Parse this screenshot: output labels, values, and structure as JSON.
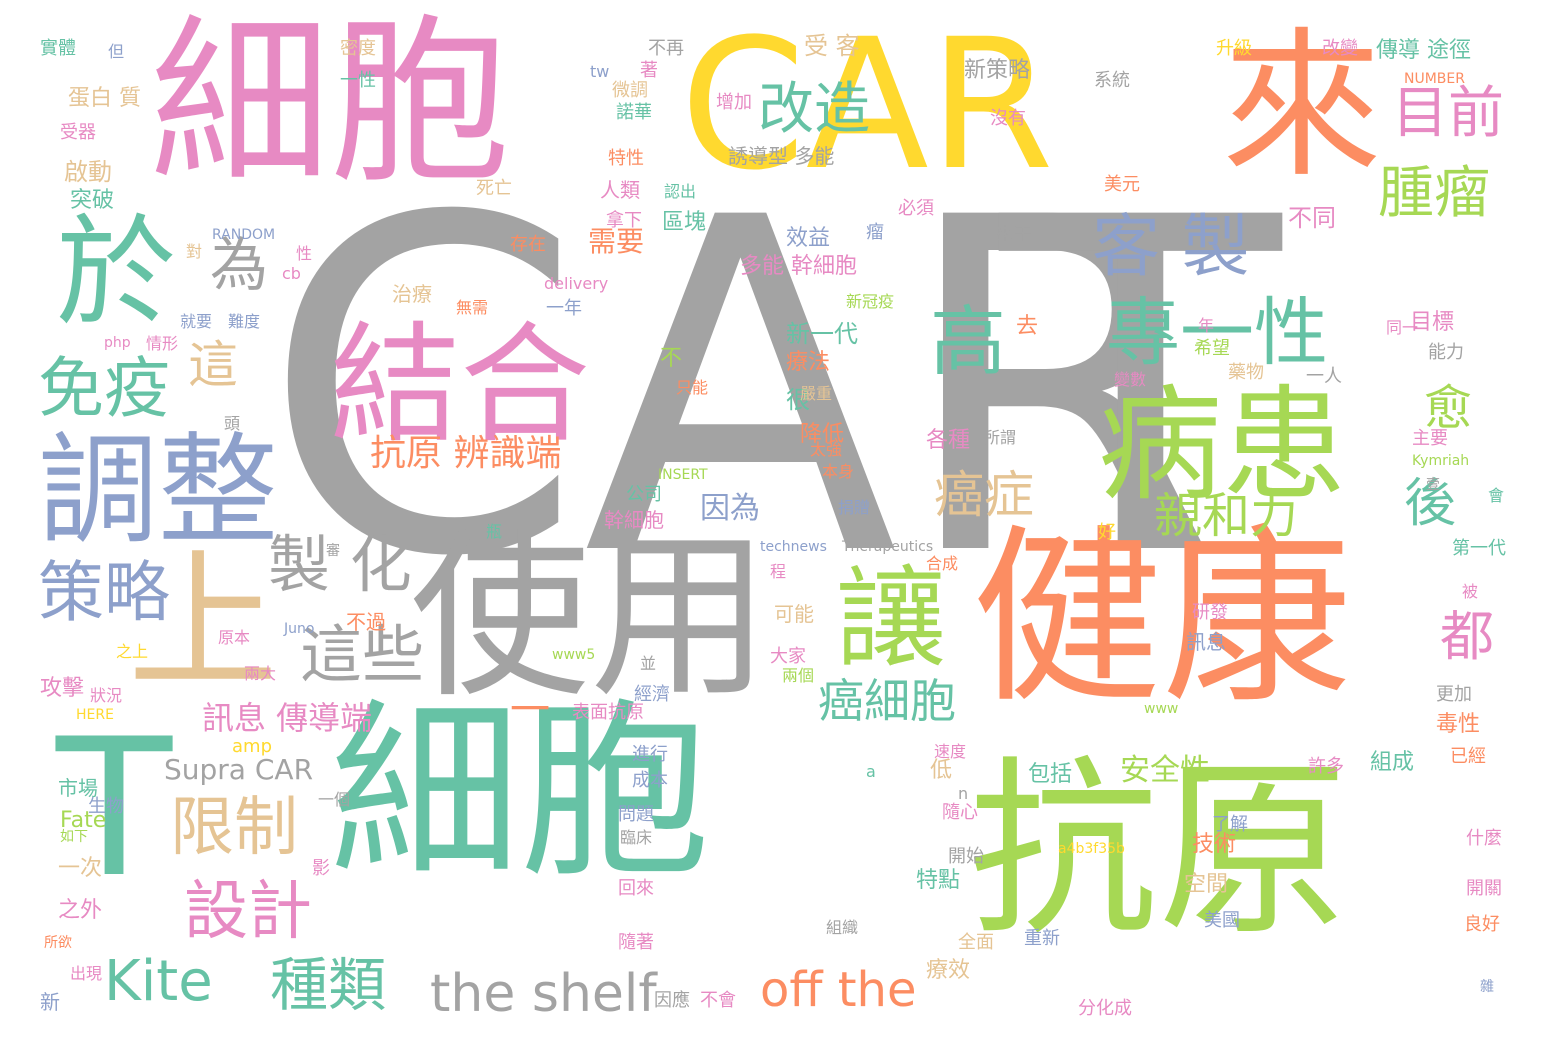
{
  "words": [
    {
      "text": "CAR",
      "color": "#a3a3a3"
    },
    {
      "text": "T",
      "color": "#a3a3a3"
    },
    {
      "text": "細胞",
      "color": "#e78ac3"
    },
    {
      "text": "CAR",
      "color": "#ffd92f"
    },
    {
      "text": "來",
      "color": "#fc8d62"
    },
    {
      "text": "於",
      "color": "#66c2a5"
    },
    {
      "text": "調整",
      "color": "#8da0cb"
    },
    {
      "text": "結合",
      "color": "#e78ac3"
    },
    {
      "text": "病患",
      "color": "#a6d854"
    },
    {
      "text": "健康",
      "color": "#fc8d62"
    },
    {
      "text": "使用",
      "color": "#a3a3a3"
    },
    {
      "text": "上",
      "color": "#e5c494"
    },
    {
      "text": "T",
      "color": "#66c2a5"
    },
    {
      "text": "細胞",
      "color": "#66c2a5"
    },
    {
      "text": "抗原",
      "color": "#a6d854"
    },
    {
      "text": "讓",
      "color": "#a6d854"
    },
    {
      "text": "改造",
      "color": "#66c2a5"
    },
    {
      "text": "目前",
      "color": "#e78ac3"
    },
    {
      "text": "腫瘤",
      "color": "#a6d854"
    },
    {
      "text": "客 製",
      "color": "#8da0cb"
    },
    {
      "text": "專一性",
      "color": "#66c2a5"
    },
    {
      "text": "高",
      "color": "#66c2a5"
    },
    {
      "text": "免疫",
      "color": "#66c2a5"
    },
    {
      "text": "為",
      "color": "#a3a3a3"
    },
    {
      "text": "策略",
      "color": "#8da0cb"
    },
    {
      "text": "限制",
      "color": "#e5c494"
    },
    {
      "text": "設計",
      "color": "#e78ac3"
    },
    {
      "text": "Kite",
      "color": "#66c2a5"
    },
    {
      "text": "種類",
      "color": "#66c2a5"
    },
    {
      "text": "the shelf",
      "color": "#a3a3a3"
    },
    {
      "text": "off the",
      "color": "#fc8d62"
    },
    {
      "text": "製 化",
      "color": "#a3a3a3"
    },
    {
      "text": "這些",
      "color": "#a3a3a3"
    },
    {
      "text": "癌細胞",
      "color": "#66c2a5"
    },
    {
      "text": "親和力",
      "color": "#a6d854"
    },
    {
      "text": "癌症",
      "color": "#e5c494"
    },
    {
      "text": "愈",
      "color": "#a6d854"
    },
    {
      "text": "後",
      "color": "#66c2a5"
    },
    {
      "text": "都",
      "color": "#e78ac3"
    },
    {
      "text": "這",
      "color": "#e5c494"
    },
    {
      "text": "抗原 辨識端",
      "color": "#fc8d62"
    },
    {
      "text": "訊息 傳導端",
      "color": "#e78ac3"
    },
    {
      "text": "Supra CAR",
      "color": "#a3a3a3"
    },
    {
      "text": "安全性",
      "color": "#a6d854"
    },
    {
      "text": "一",
      "color": "#fc8d62"
    },
    {
      "text": "表面抗原",
      "color": "#e78ac3"
    },
    {
      "text": "需要",
      "color": "#fc8d62"
    },
    {
      "text": "因為",
      "color": "#8da0cb"
    },
    {
      "text": "幹細胞",
      "color": "#e78ac3"
    },
    {
      "text": "多能 幹細胞",
      "color": "#e78ac3"
    },
    {
      "text": "新一代",
      "color": "#66c2a5"
    },
    {
      "text": "療法",
      "color": "#fc8d62"
    },
    {
      "text": "降低",
      "color": "#fc8d62"
    },
    {
      "text": "各種",
      "color": "#e78ac3"
    },
    {
      "text": "區塊",
      "color": "#66c2a5"
    },
    {
      "text": "效益",
      "color": "#8da0cb"
    },
    {
      "text": "誘導型 多能",
      "color": "#a3a3a3"
    },
    {
      "text": "新策略",
      "color": "#a3a3a3"
    },
    {
      "text": "受 客",
      "color": "#e5c494"
    },
    {
      "text": "傳導 途徑",
      "color": "#66c2a5"
    },
    {
      "text": "不同",
      "color": "#e78ac3"
    },
    {
      "text": "人類",
      "color": "#e78ac3"
    },
    {
      "text": "拿下",
      "color": "#e78ac3"
    },
    {
      "text": "治療",
      "color": "#e5c494"
    },
    {
      "text": "蛋白 質",
      "color": "#e5c494"
    },
    {
      "text": "啟動",
      "color": "#e5c494"
    },
    {
      "text": "突破",
      "color": "#66c2a5"
    },
    {
      "text": "RANDOM",
      "color": "#8da0cb"
    },
    {
      "text": "INSERT",
      "color": "#a6d854"
    },
    {
      "text": "NUMBER",
      "color": "#fc8d62"
    },
    {
      "text": "HERE",
      "color": "#ffd92f"
    },
    {
      "text": "technews",
      "color": "#8da0cb"
    },
    {
      "text": "Therapeutics",
      "color": "#a3a3a3"
    },
    {
      "text": "delivery",
      "color": "#e78ac3"
    },
    {
      "text": "Juno",
      "color": "#8da0cb"
    },
    {
      "text": "Fate",
      "color": "#a6d854"
    },
    {
      "text": "Kymriah",
      "color": "#a6d854"
    },
    {
      "text": "a4b3f35b",
      "color": "#ffd92f"
    },
    {
      "text": "www5",
      "color": "#a6d854"
    },
    {
      "text": "www",
      "color": "#a6d854"
    },
    {
      "text": "amp",
      "color": "#ffd92f"
    },
    {
      "text": "php",
      "color": "#e78ac3"
    },
    {
      "text": "tw",
      "color": "#8da0cb"
    },
    {
      "text": "cb",
      "color": "#e78ac3"
    },
    {
      "text": "技術",
      "color": "#fc8d62"
    },
    {
      "text": "組成",
      "color": "#66c2a5"
    },
    {
      "text": "包括",
      "color": "#66c2a5"
    },
    {
      "text": "特點",
      "color": "#66c2a5"
    },
    {
      "text": "之外",
      "color": "#e78ac3"
    },
    {
      "text": "一次",
      "color": "#e5c494"
    },
    {
      "text": "攻擊",
      "color": "#e78ac3"
    },
    {
      "text": "毒性",
      "color": "#fc8d62"
    },
    {
      "text": "空間",
      "color": "#e5c494"
    },
    {
      "text": "療效",
      "color": "#e5c494"
    },
    {
      "text": "低",
      "color": "#e5c494"
    },
    {
      "text": "可能",
      "color": "#e5c494"
    },
    {
      "text": "不過",
      "color": "#fc8d62"
    },
    {
      "text": "很",
      "color": "#66c2a5"
    },
    {
      "text": "去",
      "color": "#fc8d62"
    },
    {
      "text": "不",
      "color": "#a6d854"
    },
    {
      "text": "目標",
      "color": "#e78ac3"
    },
    {
      "text": "能力",
      "color": "#a3a3a3"
    },
    {
      "text": "實體",
      "color": "#66c2a5"
    },
    {
      "text": "但",
      "color": "#8da0cb"
    },
    {
      "text": "密度",
      "color": "#e5c494"
    },
    {
      "text": "一性",
      "color": "#66c2a5"
    },
    {
      "text": "受器",
      "color": "#e78ac3"
    },
    {
      "text": "特性",
      "color": "#fc8d62"
    },
    {
      "text": "認出",
      "color": "#66c2a5"
    },
    {
      "text": "死亡",
      "color": "#e5c494"
    },
    {
      "text": "存在",
      "color": "#fc8d62"
    },
    {
      "text": "諾華",
      "color": "#66c2a5"
    },
    {
      "text": "微調",
      "color": "#e5c494"
    },
    {
      "text": "增加",
      "color": "#e78ac3"
    },
    {
      "text": "沒有",
      "color": "#e78ac3"
    },
    {
      "text": "系統",
      "color": "#a3a3a3"
    },
    {
      "text": "美元",
      "color": "#fc8d62"
    },
    {
      "text": "不再",
      "color": "#a3a3a3"
    },
    {
      "text": "升級",
      "color": "#ffd92f"
    },
    {
      "text": "改變",
      "color": "#e78ac3"
    },
    {
      "text": "必須",
      "color": "#e78ac3"
    },
    {
      "text": "來干",
      "color": "#a3a3a3"
    },
    {
      "text": "瘤",
      "color": "#8da0cb"
    },
    {
      "text": "性",
      "color": "#e78ac3"
    },
    {
      "text": "對",
      "color": "#e5c494"
    },
    {
      "text": "就要",
      "color": "#8da0cb"
    },
    {
      "text": "難度",
      "color": "#8da0cb"
    },
    {
      "text": "情形",
      "color": "#e78ac3"
    },
    {
      "text": "無需",
      "color": "#fc8d62"
    },
    {
      "text": "一年",
      "color": "#8da0cb"
    },
    {
      "text": "希望",
      "color": "#a6d854"
    },
    {
      "text": "藥物",
      "color": "#e5c494"
    },
    {
      "text": "變數",
      "color": "#e78ac3"
    },
    {
      "text": "一人",
      "color": "#a3a3a3"
    },
    {
      "text": "同一",
      "color": "#e78ac3"
    },
    {
      "text": "主要",
      "color": "#e78ac3"
    },
    {
      "text": "只能",
      "color": "#fc8d62"
    },
    {
      "text": "嚴重",
      "color": "#e5c494"
    },
    {
      "text": "太強",
      "color": "#fc8d62"
    },
    {
      "text": "本身",
      "color": "#fc8d62"
    },
    {
      "text": "所謂",
      "color": "#a3a3a3"
    },
    {
      "text": "頭",
      "color": "#a3a3a3"
    },
    {
      "text": "原本",
      "color": "#e78ac3"
    },
    {
      "text": "兩大",
      "color": "#e78ac3"
    },
    {
      "text": "狀況",
      "color": "#e78ac3"
    },
    {
      "text": "之上",
      "color": "#ffd92f"
    },
    {
      "text": "市場",
      "color": "#66c2a5"
    },
    {
      "text": "生物",
      "color": "#8da0cb"
    },
    {
      "text": "如下",
      "color": "#a6d854"
    },
    {
      "text": "所欲",
      "color": "#fc8d62"
    },
    {
      "text": "出現",
      "color": "#e78ac3"
    },
    {
      "text": "新",
      "color": "#8da0cb"
    },
    {
      "text": "影",
      "color": "#e78ac3"
    },
    {
      "text": "一個",
      "color": "#a3a3a3"
    },
    {
      "text": "瓶",
      "color": "#66c2a5"
    },
    {
      "text": "程",
      "color": "#e78ac3"
    },
    {
      "text": "公司",
      "color": "#66c2a5"
    },
    {
      "text": "經濟",
      "color": "#8da0cb"
    },
    {
      "text": "並",
      "color": "#a3a3a3"
    },
    {
      "text": "大家",
      "color": "#e78ac3"
    },
    {
      "text": "兩個",
      "color": "#a6d854"
    },
    {
      "text": "合成",
      "color": "#fc8d62"
    },
    {
      "text": "捐贈",
      "color": "#8da0cb"
    },
    {
      "text": "訊息",
      "color": "#8da0cb"
    },
    {
      "text": "研發",
      "color": "#e78ac3"
    },
    {
      "text": "更加",
      "color": "#a3a3a3"
    },
    {
      "text": "已經",
      "color": "#fc8d62"
    },
    {
      "text": "什麼",
      "color": "#e78ac3"
    },
    {
      "text": "開關",
      "color": "#e78ac3"
    },
    {
      "text": "良好",
      "color": "#fc8d62"
    },
    {
      "text": "雜",
      "color": "#8da0cb"
    },
    {
      "text": "許多",
      "color": "#e78ac3"
    },
    {
      "text": "了解",
      "color": "#8da0cb"
    },
    {
      "text": "美國",
      "color": "#8da0cb"
    },
    {
      "text": "分化成",
      "color": "#e78ac3"
    },
    {
      "text": "重新",
      "color": "#8da0cb"
    },
    {
      "text": "全面",
      "color": "#e5c494"
    },
    {
      "text": "組織",
      "color": "#a3a3a3"
    },
    {
      "text": "開始",
      "color": "#a3a3a3"
    },
    {
      "text": "隨心",
      "color": "#e78ac3"
    },
    {
      "text": "速度",
      "color": "#e78ac3"
    },
    {
      "text": "進行",
      "color": "#8da0cb"
    },
    {
      "text": "成本",
      "color": "#8da0cb"
    },
    {
      "text": "問題",
      "color": "#8da0cb"
    },
    {
      "text": "臨床",
      "color": "#a3a3a3"
    },
    {
      "text": "回來",
      "color": "#e78ac3"
    },
    {
      "text": "隨著",
      "color": "#e78ac3"
    },
    {
      "text": "因應",
      "color": "#a3a3a3"
    },
    {
      "text": "不會",
      "color": "#e78ac3"
    },
    {
      "text": "好",
      "color": "#ffd92f"
    },
    {
      "text": "會",
      "color": "#66c2a5"
    },
    {
      "text": "第一代",
      "color": "#66c2a5"
    },
    {
      "text": "被",
      "color": "#e78ac3"
    },
    {
      "text": "壹",
      "color": "#a3a3a3"
    },
    {
      "text": "a",
      "color": "#66c2a5"
    },
    {
      "text": "n",
      "color": "#a3a3a3"
    },
    {
      "text": "著",
      "color": "#e78ac3"
    },
    {
      "text": "年",
      "color": "#e78ac3"
    },
    {
      "text": "新冠疫",
      "color": "#a6d854"
    },
    {
      "text": "審",
      "color": "#a3a3a3"
    }
  ]
}
